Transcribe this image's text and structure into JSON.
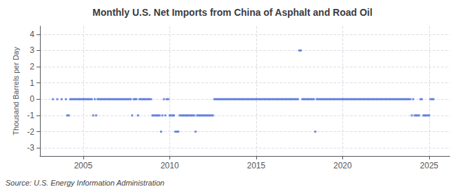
{
  "chart_data": {
    "type": "scatter",
    "title": "Monthly U.S. Net Imports from China of Asphalt and Road Oil",
    "ylabel": "Thousand Barrels per Day",
    "annotations": [
      "Source: U.S. Energy Information Administration"
    ],
    "marker": "square",
    "grid": true,
    "xlim": [
      2002.5,
      2026.2
    ],
    "xticks": [
      2005,
      2010,
      2015,
      2020,
      2025
    ],
    "ylim": [
      -3.5,
      4.5
    ],
    "yticks": [
      -3,
      -2,
      -1,
      0,
      1,
      2,
      3,
      4
    ],
    "x": [
      2003.25,
      2003.5,
      2003.75,
      2004.0,
      2004.08,
      2004.17,
      2004.25,
      2004.33,
      2004.42,
      2004.5,
      2004.58,
      2004.67,
      2004.75,
      2004.83,
      2004.92,
      2005.0,
      2005.08,
      2005.17,
      2005.25,
      2005.33,
      2005.42,
      2005.5,
      2005.58,
      2005.67,
      2005.75,
      2005.83,
      2005.92,
      2006.0,
      2006.08,
      2006.17,
      2006.25,
      2006.33,
      2006.42,
      2006.5,
      2006.58,
      2006.67,
      2006.75,
      2006.83,
      2006.92,
      2007.0,
      2007.08,
      2007.17,
      2007.25,
      2007.33,
      2007.42,
      2007.5,
      2007.58,
      2007.67,
      2007.75,
      2007.83,
      2007.92,
      2008.0,
      2008.08,
      2008.17,
      2008.25,
      2008.33,
      2008.42,
      2008.5,
      2008.58,
      2008.67,
      2008.75,
      2008.83,
      2008.92,
      2009.0,
      2009.08,
      2009.17,
      2009.25,
      2009.33,
      2009.42,
      2009.5,
      2009.58,
      2009.67,
      2009.75,
      2009.83,
      2009.92,
      2010.0,
      2010.08,
      2010.17,
      2010.25,
      2010.33,
      2010.42,
      2010.5,
      2010.58,
      2010.67,
      2010.75,
      2010.83,
      2010.92,
      2011.0,
      2011.08,
      2011.17,
      2011.25,
      2011.33,
      2011.42,
      2011.5,
      2011.58,
      2011.67,
      2011.75,
      2011.83,
      2011.92,
      2012.0,
      2012.08,
      2012.17,
      2012.25,
      2012.33,
      2012.42,
      2012.5,
      2012.58,
      2012.67,
      2012.75,
      2012.83,
      2012.92,
      2013.0,
      2013.08,
      2013.17,
      2013.25,
      2013.33,
      2013.42,
      2013.5,
      2013.58,
      2013.67,
      2013.75,
      2013.83,
      2013.92,
      2014.0,
      2014.08,
      2014.17,
      2014.25,
      2014.33,
      2014.42,
      2014.5,
      2014.58,
      2014.67,
      2014.75,
      2014.83,
      2014.92,
      2015.0,
      2015.08,
      2015.17,
      2015.25,
      2015.33,
      2015.42,
      2015.5,
      2015.58,
      2015.67,
      2015.75,
      2015.83,
      2015.92,
      2016.0,
      2016.08,
      2016.17,
      2016.25,
      2016.33,
      2016.42,
      2016.5,
      2016.58,
      2016.67,
      2016.75,
      2016.83,
      2016.92,
      2017.0,
      2017.08,
      2017.17,
      2017.25,
      2017.33,
      2017.42,
      2017.5,
      2017.58,
      2017.67,
      2017.75,
      2017.83,
      2017.92,
      2018.0,
      2018.08,
      2018.17,
      2018.25,
      2018.33,
      2018.42,
      2018.5,
      2018.58,
      2018.67,
      2018.75,
      2018.83,
      2018.92,
      2019.0,
      2019.08,
      2019.17,
      2019.25,
      2019.33,
      2019.42,
      2019.5,
      2019.58,
      2019.67,
      2019.75,
      2019.83,
      2019.92,
      2020.0,
      2020.08,
      2020.17,
      2020.25,
      2020.33,
      2020.42,
      2020.5,
      2020.58,
      2020.67,
      2020.75,
      2020.83,
      2020.92,
      2021.0,
      2021.08,
      2021.17,
      2021.25,
      2021.33,
      2021.42,
      2021.5,
      2021.58,
      2021.67,
      2021.75,
      2021.83,
      2021.92,
      2022.0,
      2022.08,
      2022.17,
      2022.25,
      2022.33,
      2022.42,
      2022.5,
      2022.58,
      2022.67,
      2022.75,
      2022.83,
      2022.92,
      2023.0,
      2023.08,
      2023.17,
      2023.25,
      2023.33,
      2023.42,
      2023.5,
      2023.58,
      2023.67,
      2023.75,
      2023.83,
      2023.92,
      2024.0,
      2024.08,
      2024.17,
      2024.25,
      2024.33,
      2024.42,
      2024.5,
      2024.58,
      2024.67,
      2024.75,
      2024.83,
      2024.92,
      2025.0,
      2025.08,
      2025.17,
      2025.25
    ],
    "values": [
      0,
      0,
      0,
      0,
      -1,
      -1,
      0,
      0,
      0,
      0,
      0,
      0,
      0,
      0,
      0,
      0,
      0,
      0,
      0,
      0,
      0,
      0,
      -1,
      0,
      -1,
      0,
      0,
      0,
      0,
      0,
      0,
      0,
      0,
      0,
      0,
      0,
      0,
      0,
      0,
      0,
      0,
      0,
      0,
      0,
      0,
      0,
      0,
      0,
      0,
      -1,
      0,
      0,
      0,
      -1,
      0,
      0,
      0,
      0,
      0,
      0,
      0,
      0,
      0,
      -1,
      -1,
      -1,
      -1,
      -1,
      -1,
      -2,
      -1,
      0,
      -1,
      0,
      0,
      -1,
      -1,
      -1,
      -1,
      -2,
      -2,
      -2,
      -1,
      -1,
      -1,
      -1,
      -1,
      -1,
      -1,
      -1,
      -1,
      -1,
      -1,
      -2,
      -1,
      -1,
      -1,
      -1,
      -1,
      -1,
      -1,
      -1,
      -1,
      -1,
      -1,
      -1,
      0,
      0,
      0,
      0,
      0,
      0,
      0,
      0,
      0,
      0,
      0,
      0,
      0,
      0,
      0,
      0,
      0,
      0,
      0,
      0,
      0,
      0,
      0,
      0,
      0,
      0,
      0,
      0,
      0,
      0,
      0,
      0,
      0,
      0,
      0,
      0,
      0,
      0,
      0,
      0,
      0,
      0,
      0,
      0,
      0,
      0,
      0,
      0,
      0,
      0,
      0,
      0,
      0,
      0,
      0,
      0,
      0,
      0,
      0,
      3,
      3,
      0,
      0,
      0,
      0,
      0,
      0,
      0,
      0,
      0,
      -2,
      0,
      0,
      0,
      0,
      0,
      0,
      0,
      0,
      0,
      0,
      0,
      0,
      0,
      0,
      0,
      0,
      0,
      0,
      0,
      0,
      0,
      0,
      0,
      0,
      0,
      0,
      0,
      0,
      0,
      0,
      0,
      0,
      0,
      0,
      0,
      0,
      0,
      0,
      0,
      0,
      0,
      0,
      0,
      0,
      0,
      0,
      0,
      0,
      0,
      0,
      0,
      0,
      0,
      0,
      0,
      0,
      0,
      0,
      0,
      0,
      0,
      0,
      0,
      0,
      0,
      0,
      -1,
      0,
      -1,
      -1,
      -1,
      -1,
      0,
      0,
      -1,
      -1,
      -1,
      -1,
      -1,
      0,
      0,
      0
    ]
  }
}
